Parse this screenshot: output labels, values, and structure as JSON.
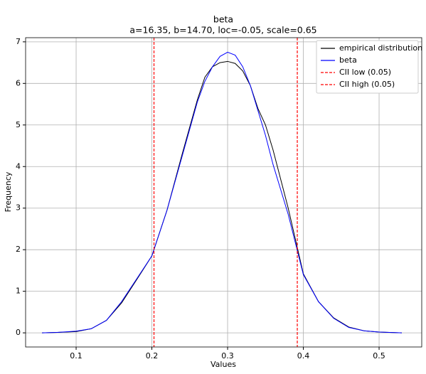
{
  "chart_data": {
    "type": "line",
    "title": "beta",
    "subtitle": "a=16.35, b=14.70, loc=-0.05, scale=0.65",
    "x_label": "Values",
    "y_label": "Frequency",
    "x": [
      0.055,
      0.075,
      0.1,
      0.12,
      0.14,
      0.16,
      0.18,
      0.2,
      0.22,
      0.24,
      0.26,
      0.27,
      0.28,
      0.29,
      0.3,
      0.31,
      0.32,
      0.33,
      0.34,
      0.35,
      0.36,
      0.38,
      0.4,
      0.42,
      0.44,
      0.46,
      0.48,
      0.5,
      0.53
    ],
    "series": [
      {
        "name": "empirical distribution",
        "color": "#000000",
        "values": [
          0.0,
          0.01,
          0.03,
          0.1,
          0.3,
          0.72,
          1.28,
          1.85,
          2.95,
          4.3,
          5.6,
          6.15,
          6.4,
          6.5,
          6.53,
          6.48,
          6.3,
          5.95,
          5.4,
          5.0,
          4.4,
          3.0,
          1.42,
          0.75,
          0.36,
          0.14,
          0.05,
          0.02,
          0.0
        ]
      },
      {
        "name": "beta",
        "color": "#0000ff",
        "values": [
          0.0,
          0.01,
          0.04,
          0.1,
          0.3,
          0.75,
          1.3,
          1.85,
          2.95,
          4.25,
          5.55,
          6.05,
          6.4,
          6.65,
          6.75,
          6.68,
          6.4,
          5.95,
          5.35,
          4.75,
          4.05,
          2.85,
          1.4,
          0.75,
          0.35,
          0.13,
          0.05,
          0.02,
          0.0
        ]
      }
    ],
    "vlines": [
      {
        "name": "CII low (0.05)",
        "color": "#ff0000",
        "value": 0.2028
      },
      {
        "name": "CII high (0.05)",
        "color": "#ff0000",
        "value": 0.392
      }
    ],
    "xlim": [
      0.0333,
      0.5563
    ],
    "ylim": [
      -0.34,
      7.1
    ],
    "xticks": [
      0.1,
      0.2,
      0.3,
      0.4,
      0.5
    ],
    "yticks": [
      0,
      1,
      2,
      3,
      4,
      5,
      6,
      7
    ],
    "grid": true,
    "legend": "upper right"
  }
}
